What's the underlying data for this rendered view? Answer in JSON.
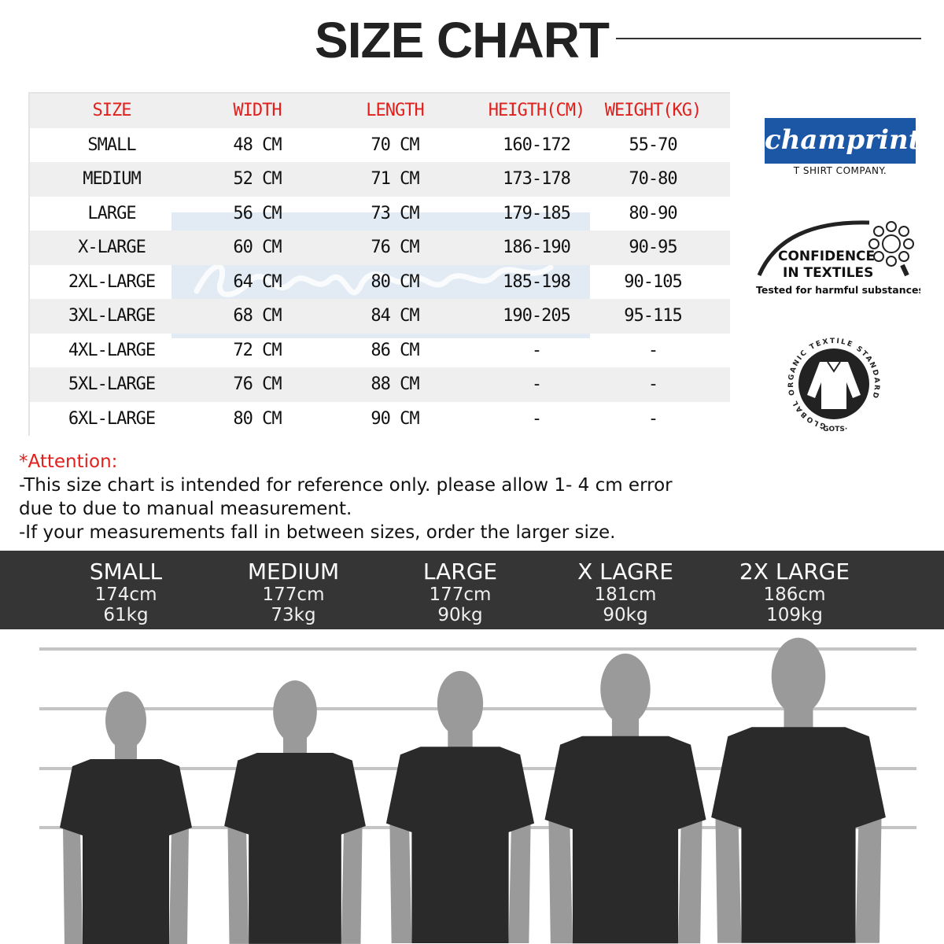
{
  "title": "SIZE CHART",
  "table": {
    "headers": [
      "SIZE",
      "WIDTH",
      "LENGTH",
      "HEIGTH(CM)",
      "WEIGHT(KG)"
    ],
    "rows": [
      [
        "SMALL",
        "48 CM",
        "70 CM",
        "160-172",
        "55-70"
      ],
      [
        "MEDIUM",
        "52 CM",
        "71 CM",
        "173-178",
        "70-80"
      ],
      [
        "LARGE",
        "56 CM",
        "73 CM",
        "179-185",
        "80-90"
      ],
      [
        "X-LARGE",
        "60 CM",
        "76 CM",
        "186-190",
        "90-95"
      ],
      [
        "2XL-LARGE",
        "64 CM",
        "80 CM",
        "185-198",
        "90-105"
      ],
      [
        "3XL-LARGE",
        "68 CM",
        "84 CM",
        "190-205",
        "95-115"
      ],
      [
        "4XL-LARGE",
        "72 CM",
        "86 CM",
        "-",
        "-"
      ],
      [
        "5XL-LARGE",
        "76 CM",
        "88 CM",
        "-",
        "-"
      ],
      [
        "6XL-LARGE",
        "80 CM",
        "90 CM",
        "-",
        "-"
      ]
    ]
  },
  "watermark": {
    "script": "champrint",
    "sub": "T SHIRT COMPANY."
  },
  "brand": {
    "logo": "champrint",
    "tagline": "T SHIRT COMPANY.",
    "color": "#1c57a5"
  },
  "badges": {
    "oeko": {
      "line1": "CONFIDENCE",
      "line2": "IN TEXTILES",
      "line3": "Tested for harmful substances"
    },
    "gots": {
      "ring": "GLOBAL ORGANIC TEXTILE STANDARD",
      "bottom": "·GOTS·"
    }
  },
  "attention": {
    "heading": "*Attention:",
    "lines": [
      "-This size chart is intended for reference only. please allow 1- 4 cm error",
      "due to due to manual measurement.",
      "-If your measurements fall in between sizes, order the larger size."
    ]
  },
  "models": [
    {
      "size": "SMALL",
      "height": "174cm",
      "weight": "61kg"
    },
    {
      "size": "MEDIUM",
      "height": "177cm",
      "weight": "73kg"
    },
    {
      "size": "LARGE",
      "height": "177cm",
      "weight": "90kg"
    },
    {
      "size": "X LAGRE",
      "height": "181cm",
      "weight": "90kg"
    },
    {
      "size": "2X LARGE",
      "height": "186cm",
      "weight": "109kg"
    }
  ],
  "colors": {
    "header_text": "#e0201c",
    "band": "#353535",
    "shirt": "#2a2a2a",
    "skin": "#9a9a9a"
  }
}
